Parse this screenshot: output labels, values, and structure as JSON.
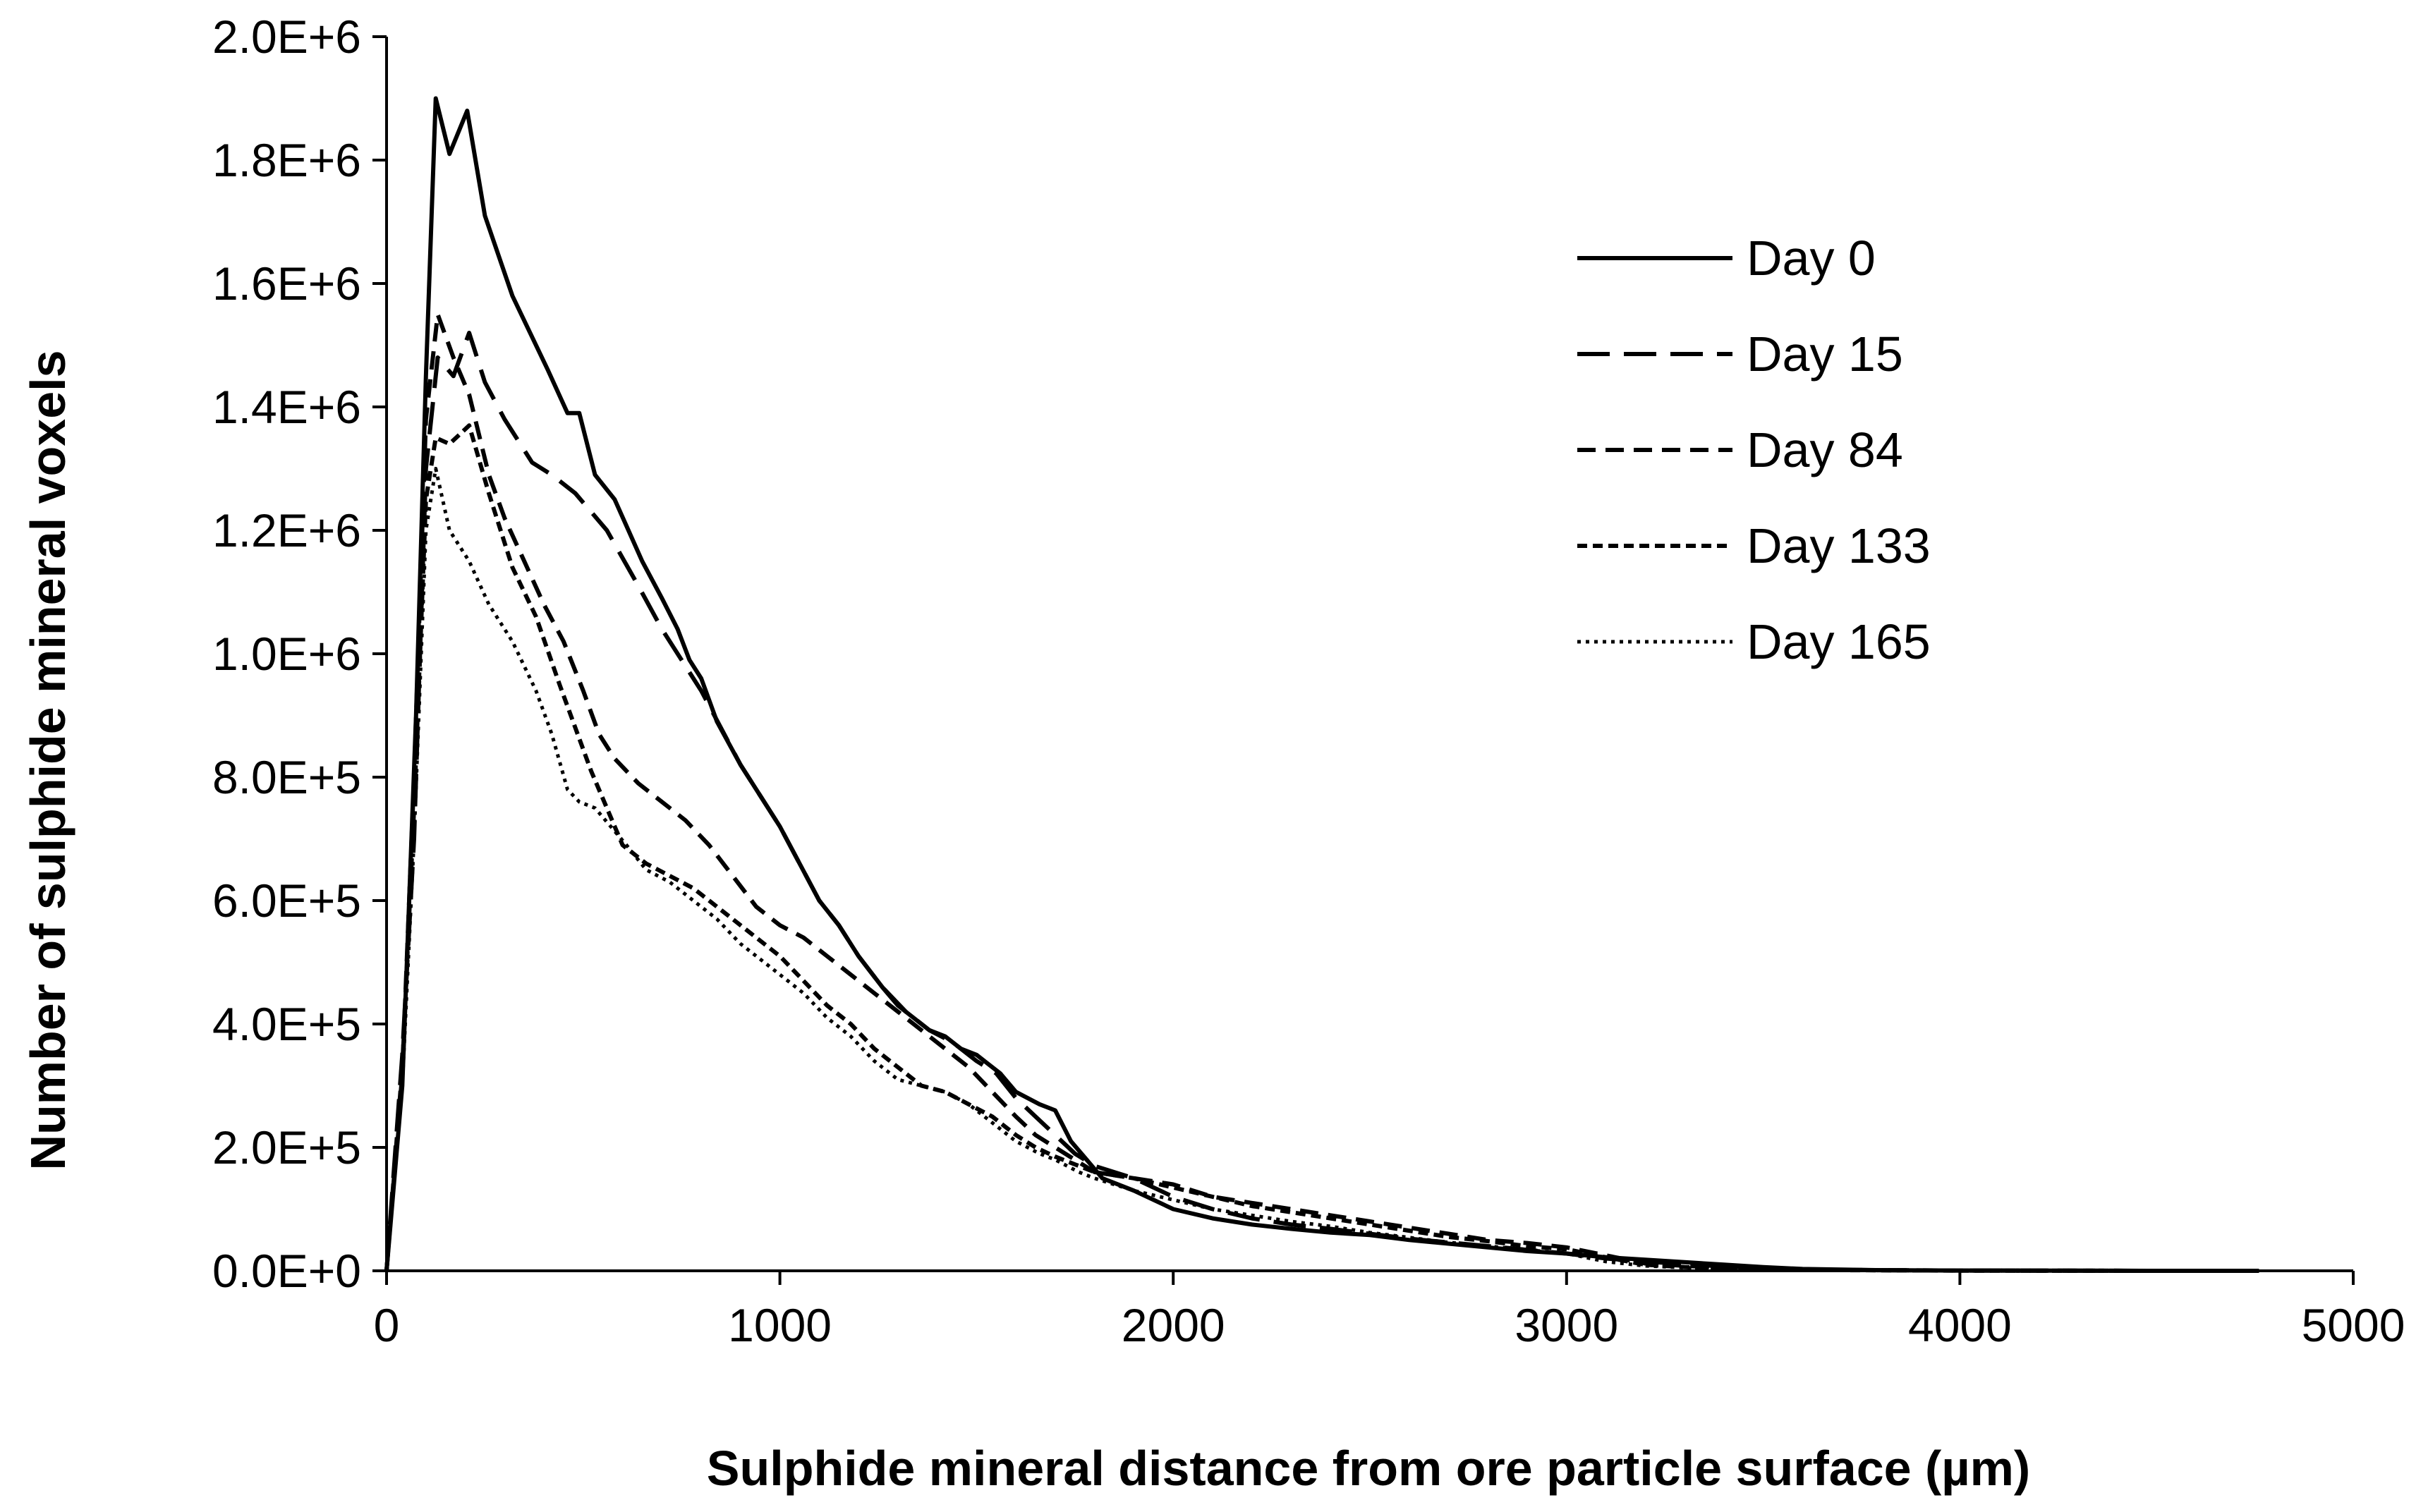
{
  "chart_data": {
    "type": "line",
    "title": "",
    "xlabel": "Sulphide mineral distance from ore particle surface (µm)",
    "ylabel": "Number of sulphide mineral voxels",
    "xlim": [
      0,
      5000
    ],
    "ylim": [
      0,
      2000000
    ],
    "x_ticks": [
      0,
      1000,
      2000,
      3000,
      4000,
      5000
    ],
    "x_tick_labels": [
      "0",
      "1000",
      "2000",
      "3000",
      "4000",
      "5000"
    ],
    "y_ticks": [
      0,
      200000,
      400000,
      600000,
      800000,
      1000000,
      1200000,
      1400000,
      1600000,
      1800000,
      2000000
    ],
    "y_tick_labels": [
      "0.0E+0",
      "2.0E+5",
      "4.0E+5",
      "6.0E+5",
      "8.0E+5",
      "1.0E+6",
      "1.2E+6",
      "1.4E+6",
      "1.6E+6",
      "1.8E+6",
      "2.0E+6"
    ],
    "grid": false,
    "legend_position": "top-right",
    "series": [
      {
        "name": "Day 0",
        "dash": "solid",
        "points": [
          [
            0,
            0
          ],
          [
            40,
            300000
          ],
          [
            75,
            900000
          ],
          [
            100,
            1450000
          ],
          [
            125,
            1900000
          ],
          [
            160,
            1810000
          ],
          [
            205,
            1880000
          ],
          [
            250,
            1710000
          ],
          [
            320,
            1580000
          ],
          [
            410,
            1460000
          ],
          [
            460,
            1390000
          ],
          [
            490,
            1390000
          ],
          [
            530,
            1290000
          ],
          [
            580,
            1250000
          ],
          [
            650,
            1150000
          ],
          [
            700,
            1090000
          ],
          [
            740,
            1040000
          ],
          [
            770,
            990000
          ],
          [
            800,
            960000
          ],
          [
            840,
            890000
          ],
          [
            900,
            820000
          ],
          [
            960,
            760000
          ],
          [
            1000,
            720000
          ],
          [
            1050,
            660000
          ],
          [
            1100,
            600000
          ],
          [
            1150,
            560000
          ],
          [
            1200,
            510000
          ],
          [
            1260,
            460000
          ],
          [
            1300,
            430000
          ],
          [
            1340,
            410000
          ],
          [
            1380,
            390000
          ],
          [
            1420,
            380000
          ],
          [
            1460,
            360000
          ],
          [
            1500,
            350000
          ],
          [
            1560,
            320000
          ],
          [
            1600,
            290000
          ],
          [
            1660,
            270000
          ],
          [
            1700,
            260000
          ],
          [
            1740,
            210000
          ],
          [
            1780,
            180000
          ],
          [
            1820,
            150000
          ],
          [
            1900,
            130000
          ],
          [
            2000,
            100000
          ],
          [
            2100,
            85000
          ],
          [
            2200,
            75000
          ],
          [
            2300,
            68000
          ],
          [
            2400,
            62000
          ],
          [
            2500,
            58000
          ],
          [
            2600,
            50000
          ],
          [
            2700,
            44000
          ],
          [
            2800,
            38000
          ],
          [
            2900,
            32000
          ],
          [
            3000,
            28000
          ],
          [
            3100,
            22000
          ],
          [
            3200,
            18000
          ],
          [
            3300,
            14000
          ],
          [
            3400,
            10000
          ],
          [
            3500,
            6000
          ],
          [
            3600,
            3000
          ],
          [
            3700,
            2000
          ],
          [
            3800,
            1000
          ],
          [
            4000,
            500
          ],
          [
            4500,
            0
          ],
          [
            4760,
            0
          ]
        ]
      },
      {
        "name": "Day 15",
        "dash": "long-dash",
        "points": [
          [
            0,
            0
          ],
          [
            40,
            350000
          ],
          [
            70,
            700000
          ],
          [
            100,
            1300000
          ],
          [
            130,
            1480000
          ],
          [
            170,
            1450000
          ],
          [
            210,
            1520000
          ],
          [
            250,
            1440000
          ],
          [
            300,
            1380000
          ],
          [
            370,
            1310000
          ],
          [
            420,
            1290000
          ],
          [
            480,
            1260000
          ],
          [
            560,
            1200000
          ],
          [
            640,
            1110000
          ],
          [
            700,
            1040000
          ],
          [
            750,
            990000
          ],
          [
            800,
            940000
          ],
          [
            850,
            880000
          ],
          [
            900,
            820000
          ],
          [
            960,
            760000
          ],
          [
            1000,
            720000
          ],
          [
            1050,
            660000
          ],
          [
            1100,
            600000
          ],
          [
            1150,
            560000
          ],
          [
            1200,
            510000
          ],
          [
            1260,
            460000
          ],
          [
            1320,
            420000
          ],
          [
            1380,
            390000
          ],
          [
            1440,
            370000
          ],
          [
            1500,
            340000
          ],
          [
            1550,
            320000
          ],
          [
            1600,
            280000
          ],
          [
            1650,
            250000
          ],
          [
            1700,
            220000
          ],
          [
            1750,
            190000
          ],
          [
            1800,
            170000
          ],
          [
            1900,
            150000
          ],
          [
            2000,
            120000
          ],
          [
            2100,
            100000
          ],
          [
            2200,
            85000
          ],
          [
            2300,
            75000
          ],
          [
            2400,
            68000
          ],
          [
            2500,
            60000
          ],
          [
            2600,
            52000
          ],
          [
            2700,
            46000
          ],
          [
            2800,
            40000
          ],
          [
            2900,
            34000
          ],
          [
            3000,
            28000
          ],
          [
            3100,
            20000
          ],
          [
            3200,
            15000
          ],
          [
            3300,
            11000
          ],
          [
            3400,
            7000
          ],
          [
            3500,
            4000
          ],
          [
            3600,
            2000
          ],
          [
            3800,
            1000
          ],
          [
            4000,
            500
          ],
          [
            4500,
            0
          ],
          [
            4760,
            0
          ]
        ]
      },
      {
        "name": "Day 84",
        "dash": "medium-dash",
        "points": [
          [
            0,
            0
          ],
          [
            40,
            320000
          ],
          [
            70,
            800000
          ],
          [
            100,
            1380000
          ],
          [
            130,
            1550000
          ],
          [
            170,
            1480000
          ],
          [
            210,
            1420000
          ],
          [
            260,
            1290000
          ],
          [
            300,
            1220000
          ],
          [
            350,
            1150000
          ],
          [
            400,
            1080000
          ],
          [
            450,
            1020000
          ],
          [
            500,
            940000
          ],
          [
            540,
            870000
          ],
          [
            580,
            830000
          ],
          [
            640,
            790000
          ],
          [
            700,
            760000
          ],
          [
            760,
            730000
          ],
          [
            820,
            690000
          ],
          [
            880,
            640000
          ],
          [
            940,
            590000
          ],
          [
            1000,
            560000
          ],
          [
            1060,
            540000
          ],
          [
            1120,
            510000
          ],
          [
            1180,
            480000
          ],
          [
            1240,
            450000
          ],
          [
            1300,
            420000
          ],
          [
            1360,
            390000
          ],
          [
            1420,
            360000
          ],
          [
            1480,
            330000
          ],
          [
            1540,
            290000
          ],
          [
            1600,
            250000
          ],
          [
            1650,
            220000
          ],
          [
            1700,
            200000
          ],
          [
            1750,
            180000
          ],
          [
            1800,
            160000
          ],
          [
            1900,
            150000
          ],
          [
            2000,
            140000
          ],
          [
            2100,
            120000
          ],
          [
            2200,
            110000
          ],
          [
            2300,
            100000
          ],
          [
            2400,
            90000
          ],
          [
            2500,
            80000
          ],
          [
            2600,
            70000
          ],
          [
            2700,
            60000
          ],
          [
            2800,
            50000
          ],
          [
            2900,
            45000
          ],
          [
            3000,
            38000
          ],
          [
            3100,
            25000
          ],
          [
            3200,
            12000
          ],
          [
            3300,
            8000
          ],
          [
            3400,
            5000
          ],
          [
            3500,
            3000
          ],
          [
            3600,
            2000
          ],
          [
            3800,
            1000
          ],
          [
            4000,
            500
          ],
          [
            4500,
            0
          ],
          [
            4760,
            0
          ]
        ]
      },
      {
        "name": "Day 133",
        "dash": "short-dash",
        "points": [
          [
            0,
            0
          ],
          [
            40,
            330000
          ],
          [
            70,
            750000
          ],
          [
            100,
            1250000
          ],
          [
            125,
            1350000
          ],
          [
            160,
            1340000
          ],
          [
            210,
            1370000
          ],
          [
            260,
            1260000
          ],
          [
            320,
            1140000
          ],
          [
            380,
            1060000
          ],
          [
            440,
            950000
          ],
          [
            480,
            880000
          ],
          [
            520,
            810000
          ],
          [
            560,
            750000
          ],
          [
            600,
            690000
          ],
          [
            660,
            660000
          ],
          [
            720,
            640000
          ],
          [
            780,
            620000
          ],
          [
            840,
            590000
          ],
          [
            900,
            560000
          ],
          [
            960,
            530000
          ],
          [
            1000,
            510000
          ],
          [
            1060,
            470000
          ],
          [
            1120,
            430000
          ],
          [
            1180,
            400000
          ],
          [
            1240,
            360000
          ],
          [
            1300,
            330000
          ],
          [
            1360,
            300000
          ],
          [
            1420,
            290000
          ],
          [
            1480,
            270000
          ],
          [
            1540,
            250000
          ],
          [
            1600,
            220000
          ],
          [
            1650,
            200000
          ],
          [
            1700,
            185000
          ],
          [
            1760,
            170000
          ],
          [
            1800,
            160000
          ],
          [
            1900,
            150000
          ],
          [
            2000,
            135000
          ],
          [
            2100,
            120000
          ],
          [
            2200,
            105000
          ],
          [
            2300,
            95000
          ],
          [
            2400,
            85000
          ],
          [
            2500,
            75000
          ],
          [
            2600,
            65000
          ],
          [
            2700,
            55000
          ],
          [
            2800,
            48000
          ],
          [
            2900,
            40000
          ],
          [
            3000,
            35000
          ],
          [
            3100,
            22000
          ],
          [
            3200,
            10000
          ],
          [
            3300,
            6000
          ],
          [
            3400,
            4000
          ],
          [
            3500,
            2500
          ],
          [
            3600,
            1500
          ],
          [
            3800,
            800
          ],
          [
            4000,
            400
          ],
          [
            4500,
            0
          ],
          [
            4760,
            0
          ]
        ]
      },
      {
        "name": "Day 165",
        "dash": "dotted",
        "points": [
          [
            0,
            0
          ],
          [
            40,
            300000
          ],
          [
            70,
            700000
          ],
          [
            100,
            1200000
          ],
          [
            125,
            1300000
          ],
          [
            160,
            1200000
          ],
          [
            210,
            1150000
          ],
          [
            260,
            1080000
          ],
          [
            320,
            1020000
          ],
          [
            380,
            940000
          ],
          [
            420,
            870000
          ],
          [
            460,
            780000
          ],
          [
            490,
            760000
          ],
          [
            530,
            750000
          ],
          [
            570,
            720000
          ],
          [
            610,
            690000
          ],
          [
            660,
            650000
          ],
          [
            720,
            630000
          ],
          [
            780,
            600000
          ],
          [
            840,
            570000
          ],
          [
            900,
            530000
          ],
          [
            960,
            500000
          ],
          [
            1000,
            480000
          ],
          [
            1060,
            450000
          ],
          [
            1120,
            410000
          ],
          [
            1180,
            380000
          ],
          [
            1240,
            340000
          ],
          [
            1300,
            310000
          ],
          [
            1360,
            300000
          ],
          [
            1420,
            290000
          ],
          [
            1480,
            270000
          ],
          [
            1540,
            240000
          ],
          [
            1600,
            210000
          ],
          [
            1660,
            190000
          ],
          [
            1700,
            180000
          ],
          [
            1760,
            160000
          ],
          [
            1800,
            150000
          ],
          [
            1900,
            130000
          ],
          [
            2000,
            115000
          ],
          [
            2100,
            100000
          ],
          [
            2200,
            90000
          ],
          [
            2300,
            80000
          ],
          [
            2400,
            72000
          ],
          [
            2500,
            62000
          ],
          [
            2600,
            54000
          ],
          [
            2700,
            46000
          ],
          [
            2800,
            40000
          ],
          [
            2900,
            34000
          ],
          [
            3000,
            28000
          ],
          [
            3100,
            15000
          ],
          [
            3200,
            8000
          ],
          [
            3300,
            5000
          ],
          [
            3400,
            3000
          ],
          [
            3500,
            2000
          ],
          [
            3600,
            1200
          ],
          [
            3800,
            600
          ],
          [
            4000,
            300
          ],
          [
            4500,
            0
          ],
          [
            4760,
            0
          ]
        ]
      }
    ]
  }
}
